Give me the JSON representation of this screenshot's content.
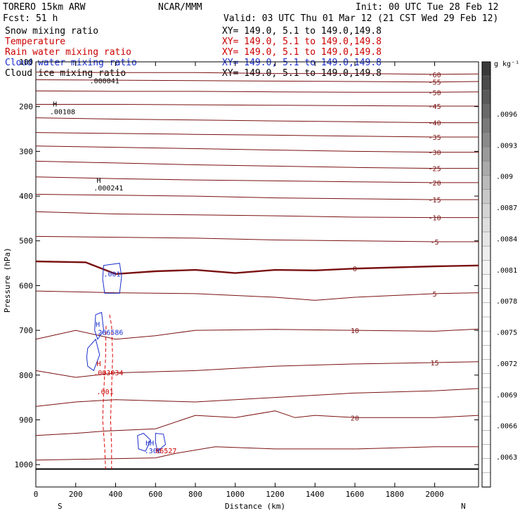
{
  "header": {
    "model": "TORERO  15km ARW",
    "org": "NCAR/MMM",
    "init": "Init: 00 UTC Tue 28 Feb 12",
    "fcst": "Fcst:   51 h",
    "valid": "Valid: 03 UTC Thu 01 Mar 12 (21 CST Wed 29 Feb 12)"
  },
  "legend": [
    {
      "name": "Snow mixing ratio",
      "color": "#000000",
      "xy": "XY= 149.0,  5.1 to 149.0,149.8"
    },
    {
      "name": "Temperature",
      "color": "#cc0000",
      "xy": "XY= 149.0,  5.1 to 149.0,149.8"
    },
    {
      "name": "Rain water mixing ratio",
      "color": "#cc0000",
      "xy": "XY= 149.0,  5.1 to 149.0,149.8"
    },
    {
      "name": "Cloud water mixing ratio",
      "color": "#1a2fcc",
      "xy": "XY= 149.0,  5.1 to 149.0,149.8"
    },
    {
      "name": "Cloud ice mixing ratio",
      "color": "#000000",
      "xy": "XY= 149.0,  5.1 to 149.0,149.8"
    }
  ],
  "chart_data": {
    "type": "line",
    "xlabel": "Distance (km)",
    "ylabel": "Pressure (hPa)",
    "xlim": [
      0,
      2220
    ],
    "ylim": [
      1050,
      100
    ],
    "x_ticks": [
      0,
      200,
      400,
      600,
      800,
      1000,
      1200,
      1400,
      1600,
      1800,
      2000
    ],
    "y_ticks": [
      100,
      200,
      300,
      400,
      500,
      600,
      700,
      800,
      900,
      1000
    ],
    "end_labels": {
      "left": "S",
      "right": "N"
    },
    "colorbar": {
      "unit": "g kg⁻¹",
      "ticks": [
        ".0096",
        ".0093",
        ".009",
        ".0087",
        ".0084",
        ".0081",
        ".0078",
        ".0075",
        ".0072",
        ".0069",
        ".0066",
        ".0063"
      ],
      "shades": [
        "#3a3a3a",
        "#4a4a4a",
        "#5a5a5a",
        "#6a6a6a",
        "#7a7a7a",
        "#8a8a8a",
        "#9a9a9a",
        "#aaaaaa",
        "#bababa",
        "#c8c8c8",
        "#d4d4d4",
        "#dedede",
        "#e6e6e6",
        "#eeeeee",
        "#f4f4f4",
        "#f8f8f8",
        "#fbfbfb",
        "#fdfdfd",
        "#fefefe",
        "#ffffff",
        "#ffffff",
        "#ffffff",
        "#ffffff",
        "#ffffff",
        "#ffffff",
        "#ffffff",
        "#ffffff",
        "#ffffff",
        "#ffffff",
        "#ffffff"
      ]
    },
    "temperature_contours": [
      {
        "label": "-60",
        "pts": [
          [
            0,
            123
          ],
          [
            400,
            124
          ],
          [
            800,
            124
          ],
          [
            1200,
            126
          ],
          [
            1600,
            126
          ],
          [
            2000,
            128
          ],
          [
            2220,
            127
          ]
        ]
      },
      {
        "label": "-55",
        "pts": [
          [
            0,
            140
          ],
          [
            400,
            141
          ],
          [
            800,
            142
          ],
          [
            1200,
            143
          ],
          [
            1600,
            144
          ],
          [
            2000,
            145
          ],
          [
            2220,
            144
          ]
        ]
      },
      {
        "label": "-50",
        "pts": [
          [
            0,
            165
          ],
          [
            400,
            166
          ],
          [
            800,
            166
          ],
          [
            1200,
            167
          ],
          [
            1600,
            168
          ],
          [
            2000,
            168
          ],
          [
            2220,
            167
          ]
        ]
      },
      {
        "label": "-45",
        "pts": [
          [
            0,
            195
          ],
          [
            400,
            195
          ],
          [
            800,
            196
          ],
          [
            1200,
            197
          ],
          [
            1600,
            198
          ],
          [
            2000,
            199
          ],
          [
            2220,
            199
          ]
        ]
      },
      {
        "label": "-40",
        "pts": [
          [
            0,
            225
          ],
          [
            400,
            228
          ],
          [
            800,
            230
          ],
          [
            1200,
            232
          ],
          [
            1600,
            234
          ],
          [
            2000,
            236
          ],
          [
            2220,
            236
          ]
        ]
      },
      {
        "label": "-35",
        "pts": [
          [
            0,
            258
          ],
          [
            400,
            260
          ],
          [
            800,
            262
          ],
          [
            1200,
            264
          ],
          [
            1600,
            266
          ],
          [
            2000,
            268
          ],
          [
            2220,
            268
          ]
        ]
      },
      {
        "label": "-30",
        "pts": [
          [
            0,
            288
          ],
          [
            400,
            291
          ],
          [
            800,
            294
          ],
          [
            1200,
            297
          ],
          [
            1600,
            300
          ],
          [
            2000,
            302
          ],
          [
            2220,
            302
          ]
        ]
      },
      {
        "label": "-25",
        "pts": [
          [
            0,
            322
          ],
          [
            400,
            326
          ],
          [
            800,
            330
          ],
          [
            1200,
            333
          ],
          [
            1600,
            336
          ],
          [
            2000,
            338
          ],
          [
            2220,
            338
          ]
        ]
      },
      {
        "label": "-20",
        "pts": [
          [
            0,
            357
          ],
          [
            400,
            361
          ],
          [
            800,
            364
          ],
          [
            1200,
            366
          ],
          [
            1600,
            368
          ],
          [
            2000,
            370
          ],
          [
            2220,
            370
          ]
        ]
      },
      {
        "label": "-15",
        "pts": [
          [
            0,
            396
          ],
          [
            400,
            398
          ],
          [
            800,
            400
          ],
          [
            1200,
            404
          ],
          [
            1600,
            406
          ],
          [
            2000,
            408
          ],
          [
            2220,
            408
          ]
        ]
      },
      {
        "label": "-10",
        "pts": [
          [
            0,
            435
          ],
          [
            400,
            440
          ],
          [
            800,
            442
          ],
          [
            1200,
            444
          ],
          [
            1600,
            447
          ],
          [
            2000,
            448
          ],
          [
            2220,
            448
          ]
        ]
      },
      {
        "label": "-5",
        "pts": [
          [
            0,
            490
          ],
          [
            400,
            492
          ],
          [
            800,
            494
          ],
          [
            1200,
            498
          ],
          [
            1600,
            500
          ],
          [
            2000,
            502
          ],
          [
            2220,
            502
          ]
        ]
      },
      {
        "label": "0",
        "pts": [
          [
            0,
            546
          ],
          [
            250,
            548
          ],
          [
            400,
            574
          ],
          [
            600,
            568
          ],
          [
            800,
            565
          ],
          [
            1000,
            572
          ],
          [
            1200,
            565
          ],
          [
            1400,
            566
          ],
          [
            1600,
            562
          ],
          [
            2000,
            557
          ],
          [
            2220,
            555
          ]
        ]
      },
      {
        "label": "5",
        "pts": [
          [
            0,
            612
          ],
          [
            400,
            616
          ],
          [
            800,
            618
          ],
          [
            1200,
            626
          ],
          [
            1400,
            633
          ],
          [
            1600,
            626
          ],
          [
            2000,
            618
          ],
          [
            2220,
            616
          ]
        ]
      },
      {
        "label": "10",
        "pts": [
          [
            0,
            720
          ],
          [
            200,
            700
          ],
          [
            400,
            720
          ],
          [
            600,
            712
          ],
          [
            800,
            700
          ],
          [
            1200,
            698
          ],
          [
            1600,
            700
          ],
          [
            2000,
            702
          ],
          [
            2220,
            697
          ]
        ]
      },
      {
        "label": "15",
        "pts": [
          [
            0,
            790
          ],
          [
            200,
            805
          ],
          [
            400,
            795
          ],
          [
            800,
            790
          ],
          [
            1200,
            780
          ],
          [
            1600,
            775
          ],
          [
            2000,
            772
          ],
          [
            2220,
            770
          ]
        ]
      },
      {
        "label": "",
        "pts": [
          [
            0,
            870
          ],
          [
            200,
            860
          ],
          [
            400,
            855
          ],
          [
            800,
            860
          ],
          [
            1200,
            850
          ],
          [
            1600,
            840
          ],
          [
            2000,
            835
          ],
          [
            2220,
            830
          ]
        ]
      },
      {
        "label": "20",
        "pts": [
          [
            0,
            935
          ],
          [
            200,
            930
          ],
          [
            350,
            925
          ],
          [
            600,
            920
          ],
          [
            800,
            890
          ],
          [
            1000,
            895
          ],
          [
            1200,
            880
          ],
          [
            1300,
            895
          ],
          [
            1400,
            890
          ],
          [
            1600,
            895
          ],
          [
            2000,
            895
          ],
          [
            2220,
            890
          ]
        ]
      },
      {
        "label": "",
        "pts": [
          [
            0,
            990
          ],
          [
            600,
            985
          ],
          [
            700,
            975
          ],
          [
            900,
            960
          ],
          [
            1200,
            965
          ],
          [
            1600,
            965
          ],
          [
            2000,
            960
          ],
          [
            2220,
            960
          ]
        ]
      }
    ],
    "annotations": [
      {
        "text": ".000041",
        "x": 270,
        "y": 148,
        "color": "#000000"
      },
      {
        "text": "H",
        "x": 85,
        "y": 200,
        "color": "#000000"
      },
      {
        "text": ".00108",
        "x": 70,
        "y": 217,
        "color": "#000000"
      },
      {
        "text": "H",
        "x": 305,
        "y": 370,
        "color": "#000000"
      },
      {
        "text": ".000241",
        "x": 290,
        "y": 387,
        "color": "#000000"
      },
      {
        "text": ".001",
        "x": 340,
        "y": 580,
        "color": "#1a2fcc"
      },
      {
        "text": "H",
        "x": 300,
        "y": 692,
        "color": "#1a2fcc"
      },
      {
        "text": ".286586",
        "x": 290,
        "y": 710,
        "color": "#1a2fcc"
      },
      {
        "text": "H",
        "x": 305,
        "y": 780,
        "color": "#cc0000"
      },
      {
        "text": ".003034",
        "x": 290,
        "y": 800,
        "color": "#cc0000"
      },
      {
        "text": ".001",
        "x": 305,
        "y": 843,
        "color": "#cc0000"
      },
      {
        "text": "HH",
        "x": 550,
        "y": 957,
        "color": "#1a2fcc"
      },
      {
        "text": ".306",
        "x": 545,
        "y": 975,
        "color": "#1a2fcc"
      },
      {
        "text": "66527",
        "x": 600,
        "y": 975,
        "color": "#cc0000"
      }
    ],
    "rain_contours": [
      {
        "pts": [
          [
            370,
            665
          ],
          [
            380,
            690
          ],
          [
            385,
            760
          ],
          [
            380,
            830
          ],
          [
            375,
            900
          ],
          [
            380,
            960
          ],
          [
            380,
            1010
          ]
        ]
      },
      {
        "pts": [
          [
            352,
            690
          ],
          [
            350,
            760
          ],
          [
            340,
            840
          ],
          [
            335,
            900
          ],
          [
            345,
            960
          ],
          [
            350,
            1010
          ]
        ]
      }
    ],
    "cloud_water_contours": [
      {
        "pts": [
          [
            340,
            555
          ],
          [
            420,
            550
          ],
          [
            430,
            580
          ],
          [
            420,
            617
          ],
          [
            345,
            617
          ],
          [
            335,
            585
          ],
          [
            340,
            555
          ]
        ]
      },
      {
        "pts": [
          [
            300,
            665
          ],
          [
            330,
            660
          ],
          [
            340,
            700
          ],
          [
            310,
            720
          ],
          [
            295,
            700
          ],
          [
            300,
            665
          ]
        ]
      },
      {
        "pts": [
          [
            260,
            740
          ],
          [
            300,
            720
          ],
          [
            320,
            755
          ],
          [
            290,
            790
          ],
          [
            260,
            780
          ],
          [
            255,
            760
          ],
          [
            260,
            740
          ]
        ]
      },
      {
        "pts": [
          [
            510,
            935
          ],
          [
            540,
            930
          ],
          [
            575,
            945
          ],
          [
            550,
            970
          ],
          [
            515,
            965
          ],
          [
            510,
            935
          ]
        ]
      },
      {
        "pts": [
          [
            600,
            930
          ],
          [
            640,
            932
          ],
          [
            650,
            955
          ],
          [
            610,
            970
          ],
          [
            600,
            950
          ],
          [
            600,
            930
          ]
        ]
      }
    ]
  }
}
